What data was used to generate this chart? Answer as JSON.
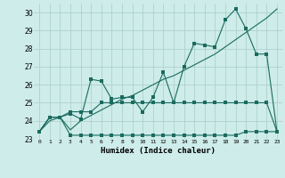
{
  "xlabel": "Humidex (Indice chaleur)",
  "background_color": "#cdecea",
  "grid_color": "#aaccca",
  "line_color": "#1a6b5e",
  "xlim": [
    -0.5,
    23.5
  ],
  "ylim": [
    23.0,
    30.5
  ],
  "xticks": [
    0,
    1,
    2,
    3,
    4,
    5,
    6,
    7,
    8,
    9,
    10,
    11,
    12,
    13,
    14,
    15,
    16,
    17,
    18,
    19,
    20,
    21,
    22,
    23
  ],
  "yticks": [
    23,
    24,
    25,
    26,
    27,
    28,
    29,
    30
  ],
  "series1_x": [
    0,
    1,
    2,
    3,
    4,
    5,
    6,
    7,
    8,
    9,
    10,
    11,
    12,
    13,
    14,
    15,
    16,
    17,
    18,
    19,
    20,
    21,
    22,
    23
  ],
  "series1_y": [
    23.4,
    24.2,
    24.2,
    23.2,
    23.2,
    23.2,
    23.2,
    23.2,
    23.2,
    23.2,
    23.2,
    23.2,
    23.2,
    23.2,
    23.2,
    23.2,
    23.2,
    23.2,
    23.2,
    23.2,
    23.4,
    23.4,
    23.4,
    23.4
  ],
  "series2_x": [
    0,
    1,
    2,
    3,
    4,
    5,
    6,
    7,
    8,
    9,
    10,
    11,
    12,
    13,
    14,
    15,
    16,
    17,
    18,
    19,
    20,
    21,
    22,
    23
  ],
  "series2_y": [
    23.4,
    24.2,
    24.2,
    24.5,
    24.5,
    24.5,
    25.0,
    25.0,
    25.0,
    25.0,
    25.0,
    25.0,
    25.0,
    25.0,
    25.0,
    25.0,
    25.0,
    25.0,
    25.0,
    25.0,
    25.0,
    25.0,
    25.0,
    23.4
  ],
  "series3_x": [
    0,
    1,
    2,
    3,
    4,
    5,
    6,
    7,
    8,
    9,
    10,
    11,
    12,
    13,
    14,
    15,
    16,
    17,
    18,
    19,
    20,
    21,
    22,
    23
  ],
  "series3_y": [
    23.4,
    24.2,
    24.2,
    24.4,
    24.1,
    26.3,
    26.2,
    25.2,
    25.3,
    25.3,
    24.5,
    25.3,
    26.7,
    25.0,
    27.0,
    28.3,
    28.2,
    28.1,
    29.6,
    30.2,
    29.1,
    27.7,
    27.7,
    23.4
  ],
  "series4_x": [
    0,
    1,
    2,
    3,
    4,
    5,
    6,
    7,
    8,
    9,
    10,
    11,
    12,
    13,
    14,
    15,
    16,
    17,
    18,
    19,
    20,
    21,
    22,
    23
  ],
  "series4_y": [
    23.4,
    24.0,
    24.2,
    23.5,
    24.0,
    24.3,
    24.6,
    24.9,
    25.2,
    25.4,
    25.7,
    26.0,
    26.3,
    26.5,
    26.8,
    27.1,
    27.4,
    27.7,
    28.1,
    28.5,
    28.9,
    29.3,
    29.7,
    30.2
  ]
}
